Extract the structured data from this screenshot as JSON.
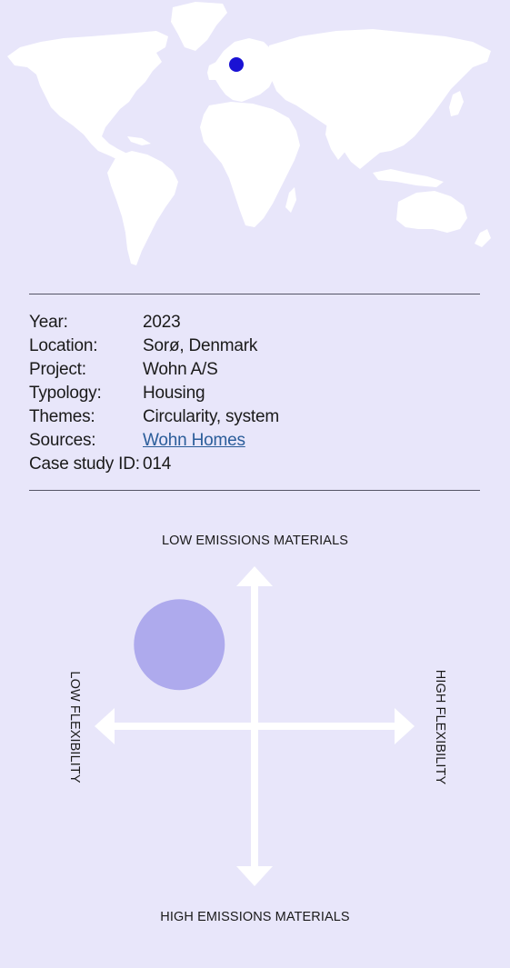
{
  "map": {
    "marker_color": "#1a12d4",
    "land_color": "#ffffff",
    "marker_icon": "location-dot-icon"
  },
  "details": {
    "rows": [
      {
        "label": "Year:",
        "value": "2023"
      },
      {
        "label": "Location:",
        "value": "Sorø, Denmark"
      },
      {
        "label": "Project:",
        "value": "Wohn A/S"
      },
      {
        "label": "Typology:",
        "value": "Housing"
      },
      {
        "label": "Themes:",
        "value": "Circularity, system"
      },
      {
        "label": "Sources:",
        "value": "Wohn Homes"
      },
      {
        "label": "Case study ID:",
        "value": "014"
      }
    ]
  },
  "chart_data": {
    "type": "scatter",
    "axes": {
      "top": "LOW EMISSIONS MATERIALS",
      "bottom": "HIGH EMISSIONS MATERIALS",
      "left": "LOW FLEXIBILITY",
      "right": "HIGH FLEXIBILITY"
    },
    "xlim": [
      -1,
      1
    ],
    "ylim": [
      -1,
      1
    ],
    "points": [
      {
        "x": -0.47,
        "y": 0.51
      }
    ],
    "point_color": "#aeaaed",
    "axis_color": "#ffffff"
  }
}
